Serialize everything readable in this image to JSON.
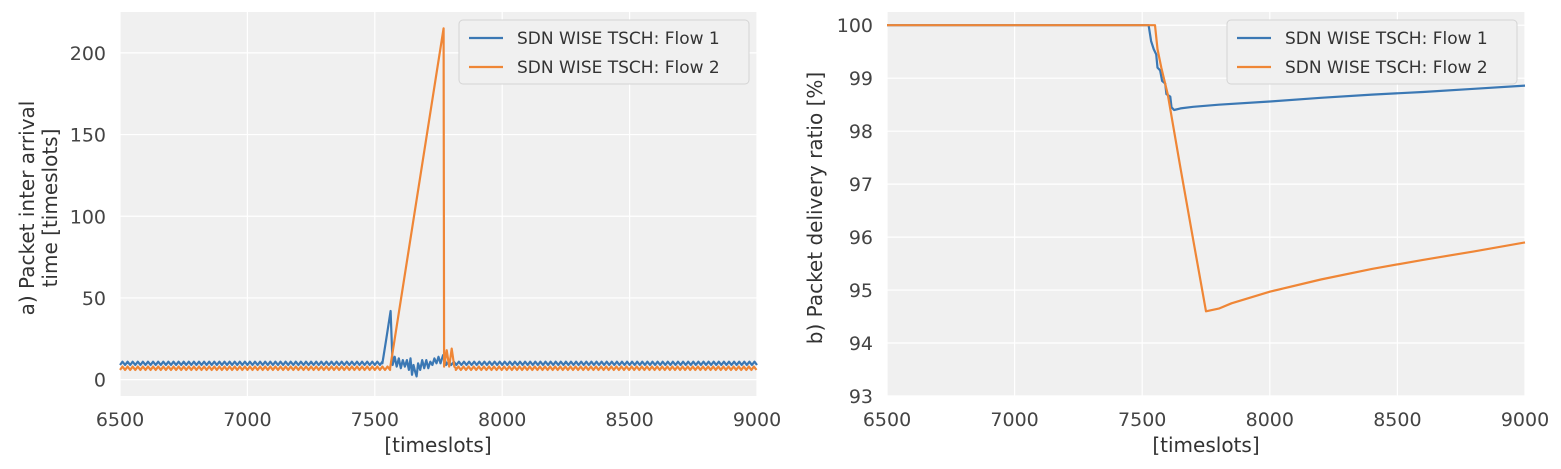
{
  "chart_data": [
    {
      "type": "line",
      "title": "",
      "xlabel": "[timeslots]",
      "ylabel": [
        "a) Packet inter arrival",
        "time [timeslots]"
      ],
      "xlim": [
        6500,
        9000
      ],
      "ylim": [
        -10,
        225
      ],
      "xticks": [
        6500,
        7000,
        7500,
        8000,
        8500,
        9000
      ],
      "yticks": [
        0,
        50,
        100,
        150,
        200
      ],
      "grid": true,
      "legend_position": "top-right",
      "series": [
        {
          "name": "SDN WISE TSCH: Flow 1",
          "color": "#3b78b4",
          "pattern": {
            "type": "zigzag",
            "x_start": 6500,
            "x_end": 7530,
            "period": 20,
            "low": 9,
            "high": 11
          },
          "points": [
            [
              7530,
              10
            ],
            [
              7545,
              25
            ],
            [
              7562,
              42
            ],
            [
              7570,
              9
            ],
            [
              7578,
              14
            ],
            [
              7586,
              8
            ],
            [
              7594,
              13
            ],
            [
              7602,
              7
            ],
            [
              7610,
              12
            ],
            [
              7618,
              8
            ],
            [
              7626,
              12
            ],
            [
              7634,
              6
            ],
            [
              7640,
              13
            ],
            [
              7646,
              3
            ],
            [
              7652,
              9
            ],
            [
              7658,
              5
            ],
            [
              7664,
              2
            ],
            [
              7670,
              10
            ],
            [
              7678,
              6
            ],
            [
              7686,
              12
            ],
            [
              7694,
              7
            ],
            [
              7702,
              12
            ],
            [
              7710,
              7
            ],
            [
              7718,
              11
            ],
            [
              7726,
              9
            ],
            [
              7734,
              13
            ],
            [
              7742,
              10
            ],
            [
              7750,
              14
            ],
            [
              7758,
              10
            ],
            [
              7768,
              15
            ],
            [
              7780,
              10
            ]
          ],
          "pattern_after": {
            "type": "zigzag",
            "x_start": 7780,
            "x_end": 9000,
            "period": 20,
            "low": 9,
            "high": 11
          }
        },
        {
          "name": "SDN WISE TSCH: Flow 2",
          "color": "#ef8636",
          "pattern": {
            "type": "zigzag",
            "x_start": 6500,
            "x_end": 7560,
            "period": 20,
            "low": 6,
            "high": 8
          },
          "points": [
            [
              7560,
              7
            ],
            [
              7770,
              215
            ],
            [
              7772,
              8
            ],
            [
              7782,
              18
            ],
            [
              7792,
              8
            ],
            [
              7802,
              19
            ],
            [
              7812,
              8
            ],
            [
              7818,
              7
            ]
          ],
          "pattern_after": {
            "type": "zigzag",
            "x_start": 7818,
            "x_end": 9000,
            "period": 20,
            "low": 6,
            "high": 8
          }
        }
      ]
    },
    {
      "type": "line",
      "title": "",
      "xlabel": "[timeslots]",
      "ylabel": [
        "b) Packet delivery ratio [%]"
      ],
      "xlim": [
        6500,
        9000
      ],
      "ylim": [
        93,
        100.25
      ],
      "xticks": [
        6500,
        7000,
        7500,
        8000,
        8500,
        9000
      ],
      "yticks": [
        93,
        94,
        95,
        96,
        97,
        98,
        99,
        100
      ],
      "grid": true,
      "legend_position": "top-right",
      "series": [
        {
          "name": "SDN WISE TSCH: Flow 1",
          "color": "#3b78b4",
          "points": [
            [
              6500,
              100
            ],
            [
              7525,
              100
            ],
            [
              7535,
              99.7
            ],
            [
              7545,
              99.55
            ],
            [
              7555,
              99.45
            ],
            [
              7560,
              99.2
            ],
            [
              7570,
              99.15
            ],
            [
              7578,
              98.95
            ],
            [
              7590,
              98.9
            ],
            [
              7595,
              98.7
            ],
            [
              7610,
              98.65
            ],
            [
              7615,
              98.45
            ],
            [
              7625,
              98.4
            ],
            [
              7650,
              98.43
            ],
            [
              7700,
              98.46
            ],
            [
              7800,
              98.5
            ],
            [
              8000,
              98.56
            ],
            [
              8200,
              98.63
            ],
            [
              8400,
              98.69
            ],
            [
              8600,
              98.74
            ],
            [
              8800,
              98.8
            ],
            [
              9000,
              98.86
            ]
          ]
        },
        {
          "name": "SDN WISE TSCH: Flow 2",
          "color": "#ef8636",
          "points": [
            [
              6500,
              100
            ],
            [
              7550,
              100
            ],
            [
              7560,
              99.55
            ],
            [
              7575,
              99.2
            ],
            [
              7600,
              98.7
            ],
            [
              7650,
              97.3
            ],
            [
              7700,
              95.95
            ],
            [
              7750,
              94.6
            ],
            [
              7800,
              94.65
            ],
            [
              7850,
              94.75
            ],
            [
              8000,
              94.97
            ],
            [
              8200,
              95.2
            ],
            [
              8400,
              95.4
            ],
            [
              8600,
              95.57
            ],
            [
              8800,
              95.73
            ],
            [
              9000,
              95.9
            ]
          ]
        }
      ]
    }
  ]
}
